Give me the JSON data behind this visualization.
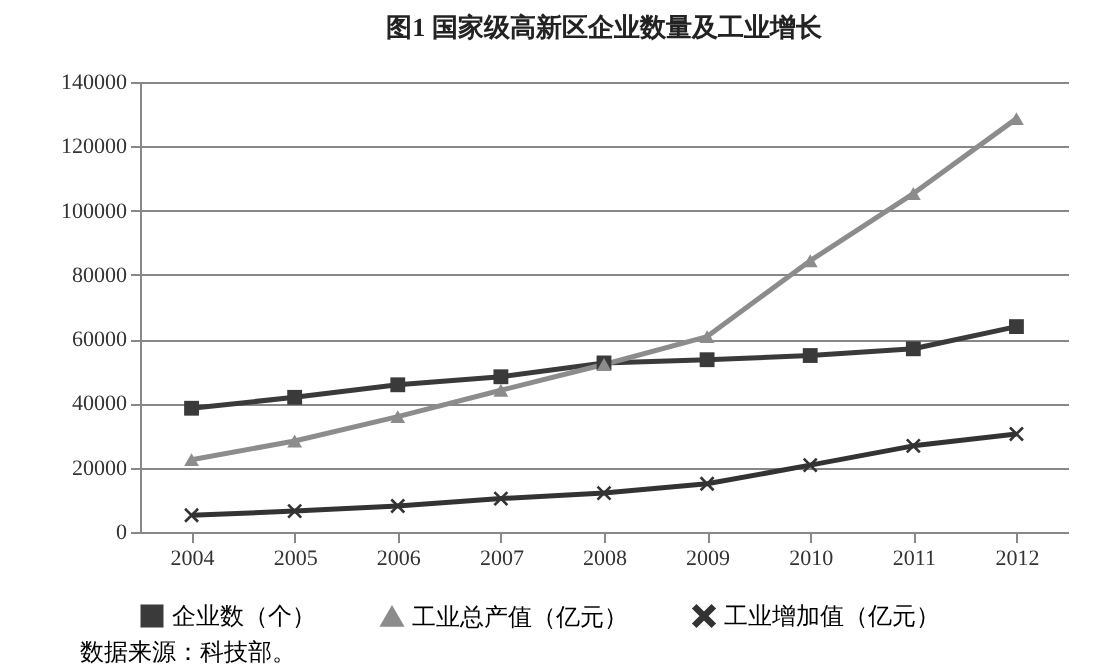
{
  "chart_data": {
    "type": "line",
    "title": "图1  国家级高新区企业数量及工业增长",
    "categories": [
      "2004",
      "2005",
      "2006",
      "2007",
      "2008",
      "2009",
      "2010",
      "2011",
      "2012"
    ],
    "series": [
      {
        "name": "企业数（个）",
        "color": "#3a3a3a",
        "marker": "square",
        "values": [
          38500,
          41900,
          45800,
          48300,
          52600,
          53600,
          54900,
          57000,
          63900
        ]
      },
      {
        "name": "工业总产值（亿元）",
        "color": "#8c8c8c",
        "marker": "triangle",
        "values": [
          22500,
          28300,
          35900,
          44100,
          52100,
          60800,
          84400,
          105300,
          128600
        ]
      },
      {
        "name": "工业增加值（亿元）",
        "color": "#333333",
        "marker": "cross",
        "values": [
          5200,
          6500,
          8100,
          10400,
          12100,
          15000,
          20800,
          26800,
          30500
        ]
      }
    ],
    "ylim": [
      0,
      140000
    ],
    "yticks": [
      0,
      20000,
      40000,
      60000,
      80000,
      100000,
      120000,
      140000
    ],
    "grid": "y",
    "legend": "bottom",
    "annotations": [
      "数据来源：科技部。"
    ]
  }
}
